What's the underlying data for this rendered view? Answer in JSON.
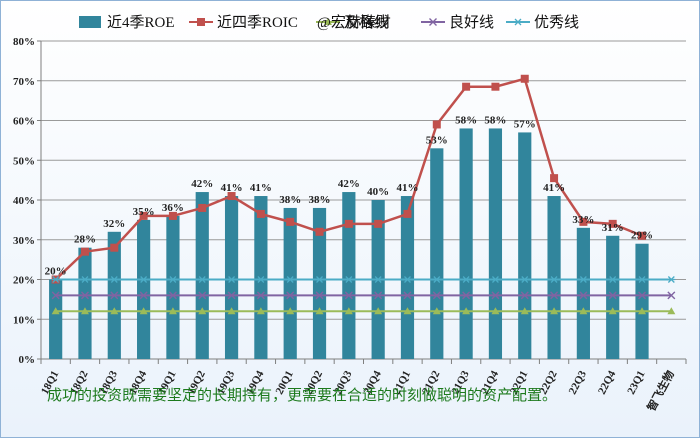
{
  "chart_data": {
    "type": "bar",
    "legend_position": "top",
    "watermark": "@宏赫臻财",
    "categories": [
      "18Q1",
      "18Q2",
      "18Q3",
      "18Q4",
      "19Q1",
      "19Q2",
      "19Q3",
      "19Q4",
      "20Q1",
      "20Q2",
      "20Q3",
      "20Q4",
      "21Q1",
      "21Q2",
      "21Q3",
      "21Q4",
      "22Q1",
      "22Q2",
      "22Q3",
      "22Q4",
      "23Q1",
      "智飞生物"
    ],
    "ylim": [
      0,
      80
    ],
    "yticks": [
      "0%",
      "10%",
      "20%",
      "30%",
      "40%",
      "50%",
      "60%",
      "70%",
      "80%"
    ],
    "grid": true,
    "series": [
      {
        "name": "近4季ROE",
        "kind": "bar",
        "color": "#31859c",
        "values": [
          20,
          28,
          32,
          35,
          36,
          42,
          41,
          41,
          38,
          38,
          42,
          40,
          41,
          53,
          58,
          58,
          57,
          41,
          33,
          31,
          29,
          null
        ],
        "labels": [
          "20%",
          "28%",
          "32%",
          "35%",
          "36%",
          "42%",
          "41%",
          "41%",
          "38%",
          "38%",
          "42%",
          "40%",
          "41%",
          "53%",
          "58%",
          "58%",
          "57%",
          "41%",
          "33%",
          "31%",
          "29%",
          ""
        ]
      },
      {
        "name": "近四季ROIC",
        "kind": "line",
        "color": "#c0504d",
        "values": [
          20,
          27,
          28,
          36,
          36,
          38,
          41,
          36.5,
          34.5,
          32,
          34,
          34,
          36.5,
          59,
          68.5,
          68.5,
          70.5,
          45.5,
          34.5,
          34,
          31,
          null
        ]
      },
      {
        "name": "及格线",
        "kind": "line",
        "color": "#9bbb59",
        "values": [
          12,
          12,
          12,
          12,
          12,
          12,
          12,
          12,
          12,
          12,
          12,
          12,
          12,
          12,
          12,
          12,
          12,
          12,
          12,
          12,
          12,
          12
        ]
      },
      {
        "name": "良好线",
        "kind": "line",
        "color": "#8064a2",
        "values": [
          16,
          16,
          16,
          16,
          16,
          16,
          16,
          16,
          16,
          16,
          16,
          16,
          16,
          16,
          16,
          16,
          16,
          16,
          16,
          16,
          16,
          16
        ]
      },
      {
        "name": "优秀线",
        "kind": "line",
        "color": "#4bacc6",
        "values": [
          20,
          20,
          20,
          20,
          20,
          20,
          20,
          20,
          20,
          20,
          20,
          20,
          20,
          20,
          20,
          20,
          20,
          20,
          20,
          20,
          20,
          20
        ]
      }
    ]
  },
  "caption": "成功的投资既需要坚定的长期持有，更需要在合适的时刻做聪明的资产配置。"
}
